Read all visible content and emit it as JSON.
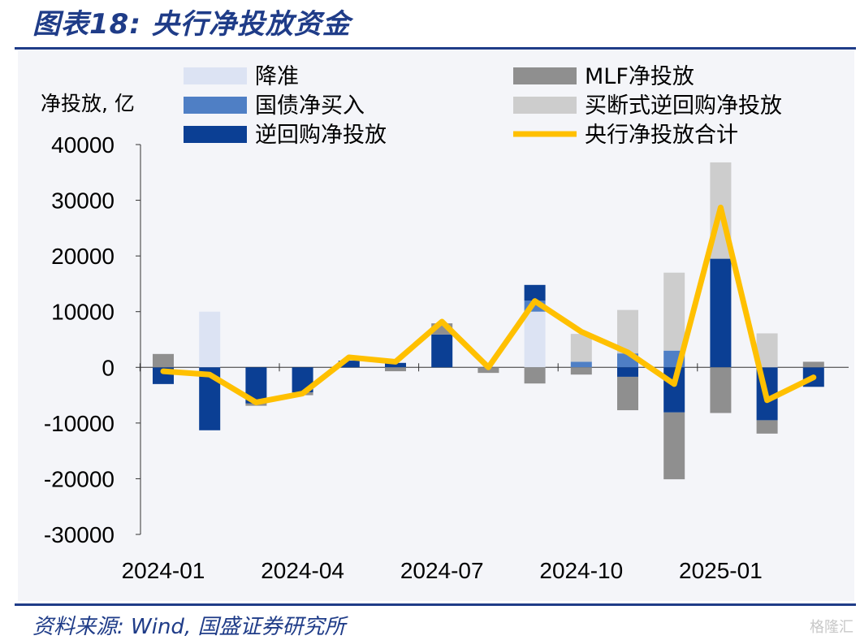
{
  "header": {
    "title": "图表18:  央行净投放资金"
  },
  "footer": {
    "source": "资料来源:  Wind, 国盛证券研究所"
  },
  "watermark": "格隆汇",
  "colors": {
    "rrr": "#dce3f3",
    "treasury": "#4f7fc5",
    "reverse_repo": "#0b3f94",
    "mlf": "#8f8f8f",
    "outright_repo": "#cdcdcd",
    "total": "#ffc000",
    "title": "#1f3c88"
  },
  "chart_data": {
    "type": "bar",
    "title": "",
    "ylabel": "净投放, 亿",
    "ylim": [
      -30000,
      40000
    ],
    "yticks": [
      40000,
      30000,
      20000,
      10000,
      0,
      -10000,
      -20000,
      -30000
    ],
    "ytick_labels": [
      "40000",
      "30000",
      "20000",
      "10000",
      "0",
      "-10000",
      "-20000",
      "-30000"
    ],
    "xtick_labels": [
      "2024-01",
      "2024-04",
      "2024-07",
      "2024-10",
      "2025-01"
    ],
    "xtick_index": [
      0,
      3,
      6,
      9,
      12
    ],
    "categories": [
      "2024-01",
      "2024-02",
      "2024-03",
      "2024-04",
      "2024-05",
      "2024-06",
      "2024-07",
      "2024-08",
      "2024-09",
      "2024-10",
      "2024-11",
      "2024-12",
      "2025-01",
      "2025-02",
      "2025-03"
    ],
    "series": [
      {
        "name": "降准",
        "key": "rrr",
        "values": [
          0,
          10000,
          0,
          0,
          0,
          0,
          0,
          0,
          10000,
          0,
          0,
          0,
          0,
          0,
          0
        ]
      },
      {
        "name": "国债净买入",
        "key": "treasury",
        "values": [
          0,
          0,
          0,
          0,
          0,
          0,
          0,
          0,
          2000,
          1000,
          2500,
          3000,
          0,
          0,
          0
        ]
      },
      {
        "name": "逆回购净投放",
        "key": "reverse_repo",
        "values": [
          -3000,
          -11300,
          -6500,
          -4500,
          1200,
          800,
          5900,
          0,
          2800,
          0,
          -1700,
          -8100,
          19500,
          -9500,
          -3500
        ]
      },
      {
        "name": "MLF净投放",
        "key": "mlf",
        "values": [
          2400,
          0,
          -400,
          -500,
          0,
          -700,
          2000,
          -1000,
          -2900,
          -1300,
          -6000,
          -12000,
          -8200,
          -2400,
          1000
        ]
      },
      {
        "name": "买断式逆回购净投放",
        "key": "outright_repo",
        "values": [
          0,
          0,
          0,
          0,
          0,
          0,
          0,
          0,
          0,
          5000,
          7800,
          14000,
          17300,
          6100,
          0
        ]
      }
    ],
    "line": {
      "name": "央行净投放合计",
      "key": "total",
      "values": [
        -700,
        -1300,
        -6300,
        -4700,
        1800,
        1000,
        8200,
        0,
        11900,
        6400,
        2700,
        -3000,
        28700,
        -5900,
        -1800
      ]
    },
    "legend": {
      "placement": "top"
    }
  }
}
